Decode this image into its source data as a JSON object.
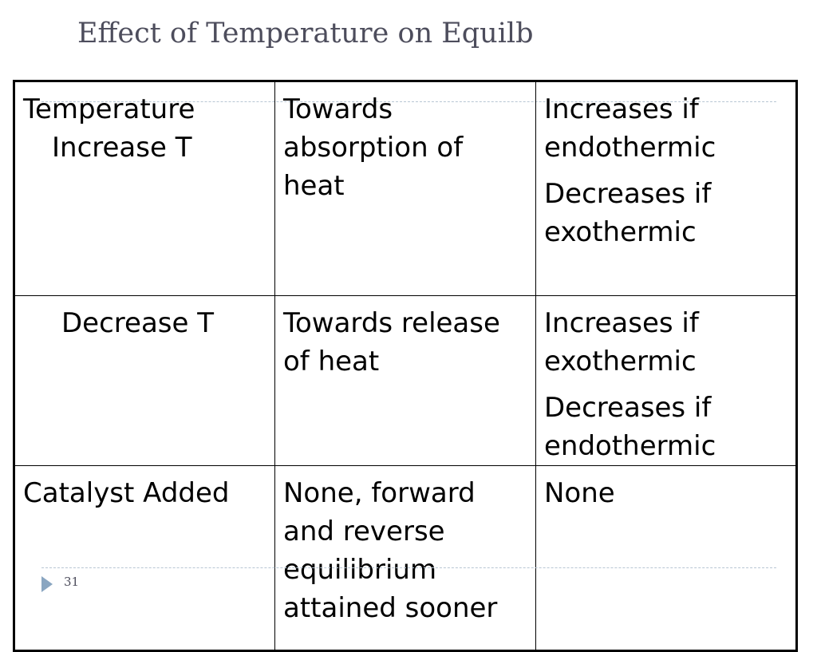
{
  "title": "Effect of Temperature on Equilb",
  "table": {
    "rows": [
      {
        "col1": [
          "Temperature",
          "Increase T"
        ],
        "col2": [
          "Towards absorption of heat"
        ],
        "col3": [
          "Increases if endothermic",
          "Decreases if exothermic"
        ]
      },
      {
        "col1": [
          "Decrease T"
        ],
        "col2": [
          "Towards release of heat"
        ],
        "col3": [
          "Increases if exothermic",
          "Decreases if endothermic"
        ]
      },
      {
        "col1": [
          "Catalyst Added"
        ],
        "col2": [
          "None, forward and reverse equilibrium attained sooner"
        ],
        "col3": [
          "None"
        ]
      }
    ]
  },
  "footer": {
    "slide_number": "31"
  }
}
